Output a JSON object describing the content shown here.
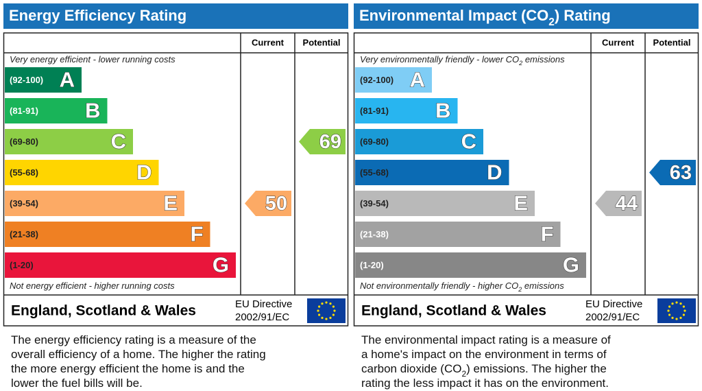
{
  "panels": [
    {
      "title": [
        "Energy Efficiency Rating"
      ],
      "headers": [
        "Current",
        "Potential"
      ],
      "top_note": [
        "Very energy efficient - lower running costs"
      ],
      "bottom_note": [
        "Not energy efficient - higher running costs"
      ],
      "bands": [
        {
          "range": "(92-100)",
          "letter": "A",
          "color": "#008054",
          "text_color": "#ffffff"
        },
        {
          "range": "(81-91)",
          "letter": "B",
          "color": "#19b459",
          "text_color": "#ffffff"
        },
        {
          "range": "(69-80)",
          "letter": "C",
          "color": "#8dce46",
          "text_color": "#222222"
        },
        {
          "range": "(55-68)",
          "letter": "D",
          "color": "#ffd500",
          "text_color": "#222222"
        },
        {
          "range": "(39-54)",
          "letter": "E",
          "color": "#fcaa65",
          "text_color": "#222222"
        },
        {
          "range": "(21-38)",
          "letter": "F",
          "color": "#ef8023",
          "text_color": "#222222"
        },
        {
          "range": "(1-20)",
          "letter": "G",
          "color": "#e9153b",
          "text_color": "#222222"
        }
      ],
      "current": {
        "value": 50,
        "color": "#fcaa65"
      },
      "potential": {
        "value": 69,
        "color": "#8dce46"
      },
      "footer": {
        "region": "England, Scotland & Wales",
        "directive": "EU Directive",
        "code": "2002/91/EC"
      },
      "description": [
        [
          "The energy efficiency rating is a measure of the"
        ],
        [
          "overall efficiency of a home. The higher the rating"
        ],
        [
          "the more energy efficient the home is and the"
        ],
        [
          "lower the fuel bills will be."
        ]
      ]
    },
    {
      "title": [
        "Environmental Impact (CO",
        "2",
        ") Rating"
      ],
      "headers": [
        "Current",
        "Potential"
      ],
      "top_note": [
        "Very environmentally friendly - lower CO",
        "2",
        " emissions"
      ],
      "bottom_note": [
        "Not environmentally friendly - higher CO",
        "2",
        " emissions"
      ],
      "bands": [
        {
          "range": "(92-100)",
          "letter": "A",
          "color": "#7fcdf5",
          "text_color": "#222222"
        },
        {
          "range": "(81-91)",
          "letter": "B",
          "color": "#28b5f0",
          "text_color": "#222222"
        },
        {
          "range": "(69-80)",
          "letter": "C",
          "color": "#1a9bd7",
          "text_color": "#222222"
        },
        {
          "range": "(55-68)",
          "letter": "D",
          "color": "#0b6bb4",
          "text_color": "#222222"
        },
        {
          "range": "(39-54)",
          "letter": "E",
          "color": "#b9b9b9",
          "text_color": "#222222"
        },
        {
          "range": "(21-38)",
          "letter": "F",
          "color": "#a2a2a2",
          "text_color": "#ffffff"
        },
        {
          "range": "(1-20)",
          "letter": "G",
          "color": "#878787",
          "text_color": "#ffffff"
        }
      ],
      "current": {
        "value": 44,
        "color": "#b9b9b9"
      },
      "potential": {
        "value": 63,
        "color": "#0b6bb4"
      },
      "footer": {
        "region": "England, Scotland & Wales",
        "directive": "EU Directive",
        "code": "2002/91/EC"
      },
      "description": [
        [
          "The environmental impact rating is a measure of"
        ],
        [
          "a home's impact on the environment in terms of"
        ],
        [
          "carbon dioxide (CO",
          "2",
          ") emissions. The higher the"
        ],
        [
          "rating the less impact it has on the environment."
        ]
      ]
    }
  ]
}
